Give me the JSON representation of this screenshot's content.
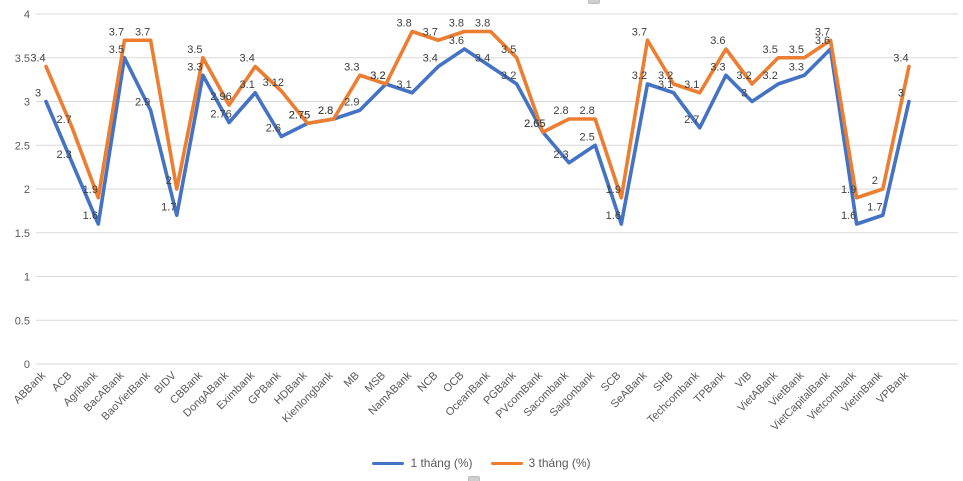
{
  "chart_data": {
    "type": "line",
    "title": "",
    "categories": [
      "ABBank",
      "ACB",
      "Agribank",
      "BacABank",
      "BaoVietBank",
      "BIDV",
      "CBBank",
      "DongABank",
      "Eximbank",
      "GPBank",
      "HDBank",
      "Kienlongbank",
      "MB",
      "MSB",
      "NamABank",
      "NCB",
      "OCB",
      "OceanBank",
      "PGBank",
      "PVcomBank",
      "Sacombank",
      "Saigonbank",
      "SCB",
      "SeABank",
      "SHB",
      "Techcombank",
      "TPBank",
      "VIB",
      "VietABank",
      "VietBank",
      "VietCapitalBank",
      "Vietcombank",
      "VietinBank",
      "VPBank"
    ],
    "series": [
      {
        "name": "1 tháng (%)",
        "color": "#4472C4",
        "values": [
          3,
          2.3,
          1.6,
          3.5,
          2.9,
          1.7,
          3.3,
          2.76,
          3.1,
          2.6,
          2.75,
          2.8,
          2.9,
          3.2,
          3.1,
          3.4,
          3.6,
          3.4,
          3.2,
          2.65,
          2.3,
          2.5,
          1.6,
          3.2,
          3.1,
          2.7,
          3.3,
          3,
          3.2,
          3.3,
          3.6,
          1.6,
          1.7,
          3
        ]
      },
      {
        "name": "3 tháng (%)",
        "color": "#ED7D31",
        "values": [
          3.4,
          2.7,
          1.9,
          3.7,
          3.7,
          2,
          3.5,
          2.96,
          3.4,
          3.12,
          2.75,
          2.8,
          3.3,
          3.2,
          3.8,
          3.7,
          3.8,
          3.8,
          3.5,
          2.65,
          2.8,
          2.8,
          1.9,
          3.7,
          3.2,
          3.1,
          3.6,
          3.2,
          3.5,
          3.5,
          3.7,
          1.9,
          2,
          3.4
        ]
      }
    ],
    "ylim": [
      0,
      4
    ],
    "yticks": [
      "0",
      "0.5",
      "1",
      "1.5",
      "2",
      "2.5",
      "3",
      "3.5",
      "4"
    ],
    "xlabel": "",
    "ylabel": "",
    "grid": true,
    "legend_position": "bottom",
    "data_labels": true
  },
  "legend": {
    "items": [
      {
        "label": "1 tháng (%)"
      },
      {
        "label": "3 tháng (%)"
      }
    ]
  },
  "colors": {
    "series1": "#4472C4",
    "series2": "#ED7D31",
    "gridline": "#D9D9D9",
    "axis_text": "#595959",
    "data_label_text": "#404040",
    "background": "#FFFFFF"
  }
}
